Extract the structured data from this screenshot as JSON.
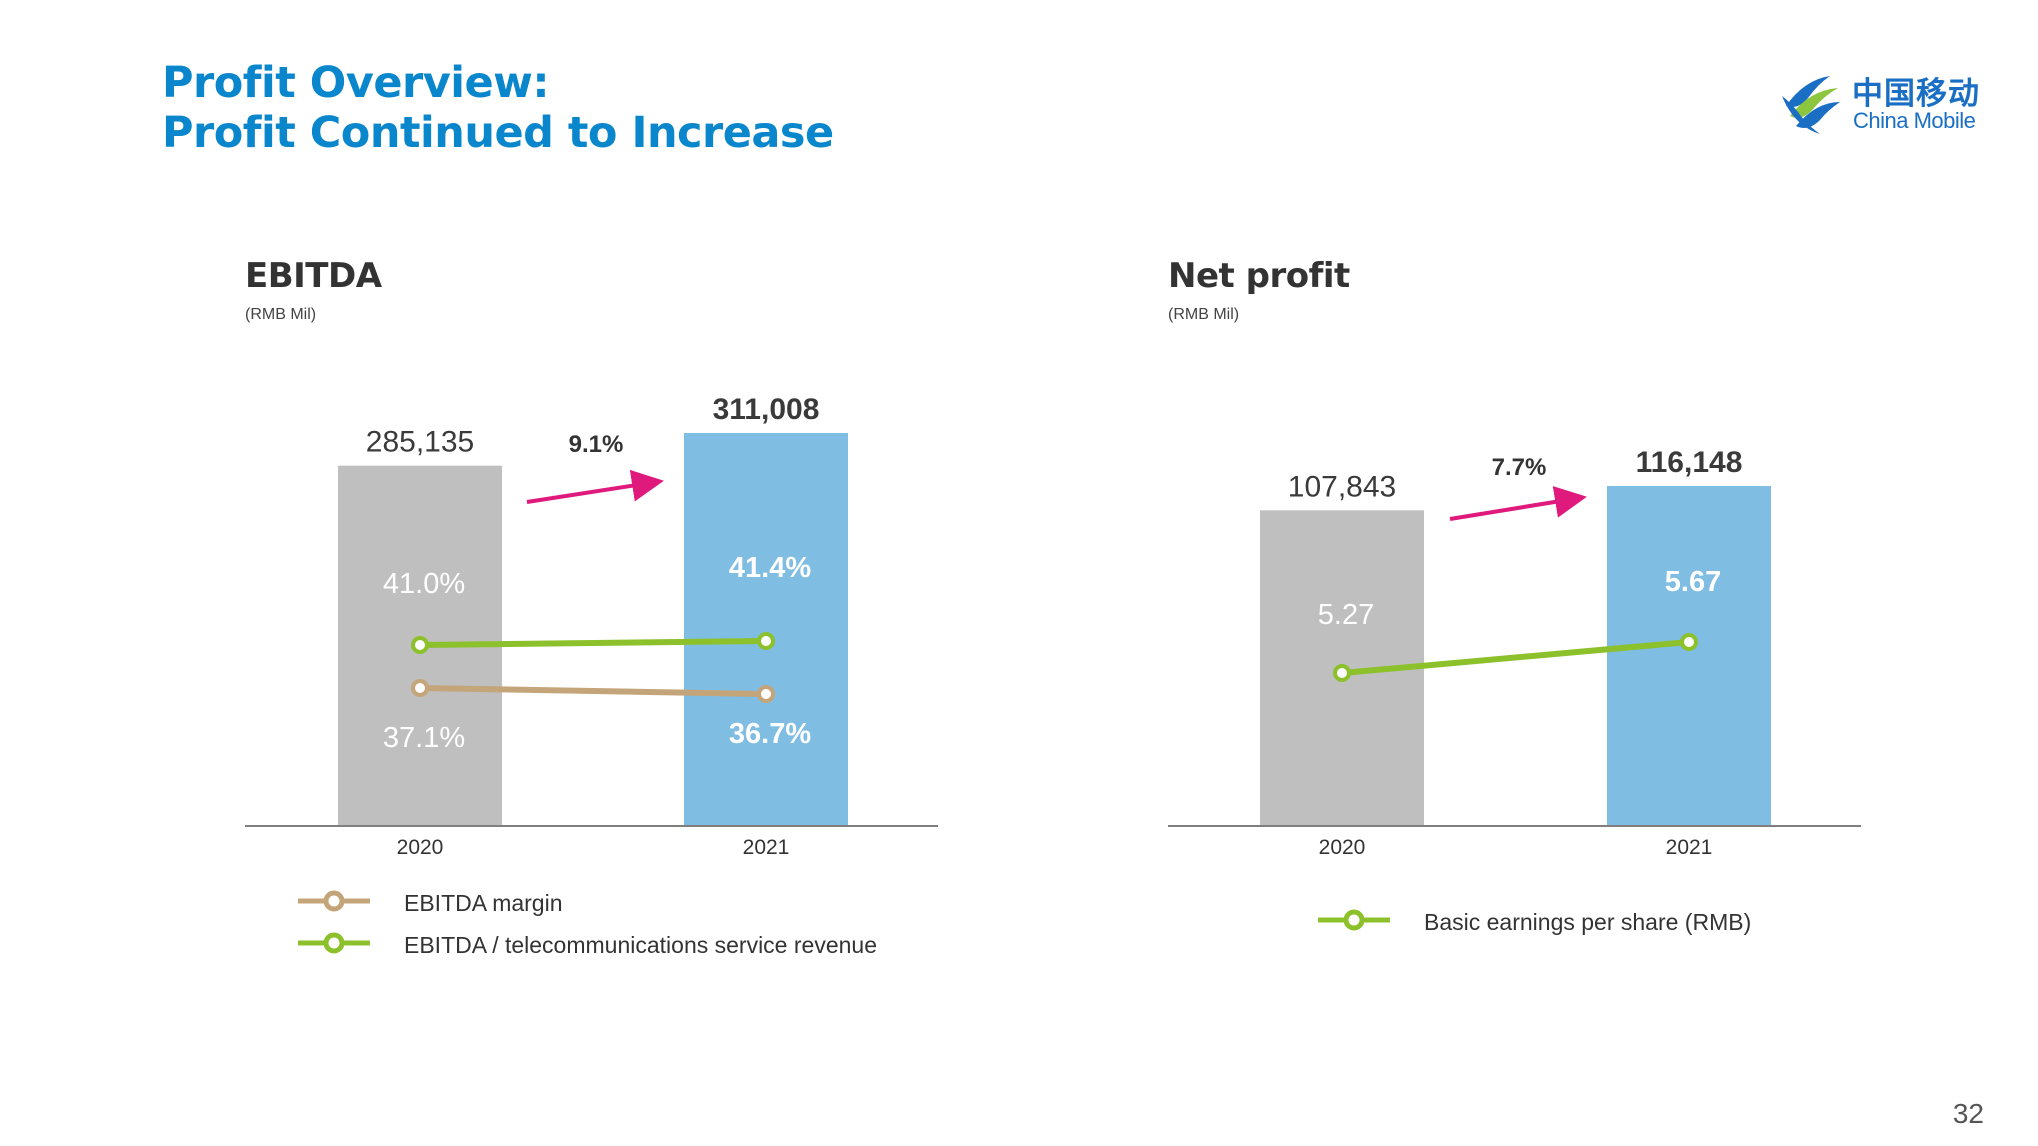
{
  "header": {
    "title_line1": "Profit Overview:",
    "title_line2": "Profit Continued to Increase"
  },
  "logo": {
    "cn_text": "中国移动",
    "en_text": "China Mobile",
    "color": "#1a6fc4"
  },
  "page_number": "32",
  "colors": {
    "bar_2020": "#bfbfbf",
    "bar_2021": "#7fbde2",
    "margin_line": "#c4a57a",
    "ratio_line": "#8cc12b",
    "growth_arrow": "#e0197d",
    "title": "#0a86cc"
  },
  "chart_data": [
    {
      "type": "bar",
      "title": "EBITDA",
      "unit": "(RMB Mil)",
      "categories": [
        "2020",
        "2021"
      ],
      "values": [
        285135,
        311008
      ],
      "value_labels": [
        "285,135",
        "311,008"
      ],
      "ylim": [
        0,
        311008
      ],
      "growth_label": "9.1%",
      "lines": [
        {
          "name": "EBITDA margin",
          "values": [
            37.1,
            36.7
          ],
          "labels": [
            "37.1%",
            "36.7%"
          ]
        },
        {
          "name": "EBITDA / telecommunications service revenue",
          "values": [
            41.0,
            41.4
          ],
          "labels": [
            "41.0%",
            "41.4%"
          ]
        }
      ],
      "legend": [
        "EBITDA margin",
        "EBITDA / telecommunications service revenue"
      ]
    },
    {
      "type": "bar",
      "title": "Net profit",
      "unit": "(RMB Mil)",
      "categories": [
        "2020",
        "2021"
      ],
      "values": [
        107843,
        116148
      ],
      "value_labels": [
        "107,843",
        "116,148"
      ],
      "ylim": [
        0,
        116148
      ],
      "growth_label": "7.7%",
      "lines": [
        {
          "name": "Basic earnings per share (RMB)",
          "values": [
            5.27,
            5.67
          ],
          "labels": [
            "5.27",
            "5.67"
          ]
        }
      ],
      "legend": [
        "Basic earnings per share (RMB)"
      ]
    }
  ]
}
